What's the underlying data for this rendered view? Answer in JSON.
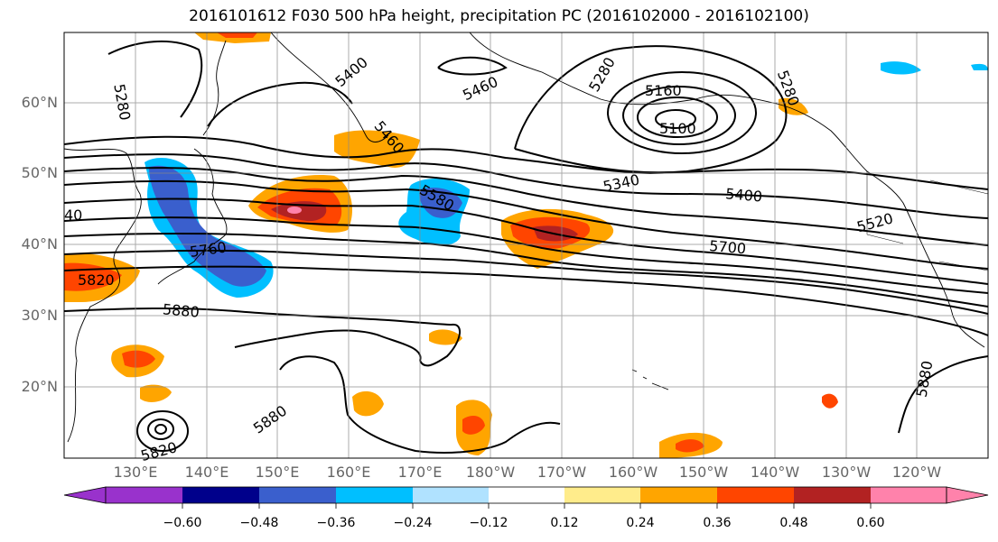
{
  "title": "2016101612 F030 500 hPa height, precipitation PC (2016102000 - 2016102100)",
  "lat_labels": [
    "60°N",
    "50°N",
    "40°N",
    "30°N",
    "20°N"
  ],
  "lon_labels": [
    "130°E",
    "140°E",
    "150°E",
    "160°E",
    "170°E",
    "180°W",
    "170°W",
    "160°W",
    "150°W",
    "140°W",
    "130°W",
    "120°W"
  ],
  "contour_labels": [
    "5280",
    "5400",
    "5460",
    "5280",
    "5160",
    "5100",
    "5280",
    "5340",
    "5460",
    "5580",
    "5400",
    "5520",
    "5700",
    "5760",
    "5820",
    "5880",
    "5880",
    "5820",
    "5880",
    "40"
  ],
  "colorbar": {
    "colors": [
      "#9932cc",
      "#00008b",
      "#3a5fcd",
      "#00bfff",
      "#b0e2ff",
      "#ffffff",
      "#ffffff",
      "#ffec8b",
      "#ffa500",
      "#ff4500",
      "#b22222",
      "#ff82ab"
    ],
    "ticks": [
      "−0.60",
      "−0.48",
      "−0.36",
      "−0.24",
      "−0.12",
      "0.12",
      "0.24",
      "0.36",
      "0.48",
      "0.60"
    ]
  }
}
